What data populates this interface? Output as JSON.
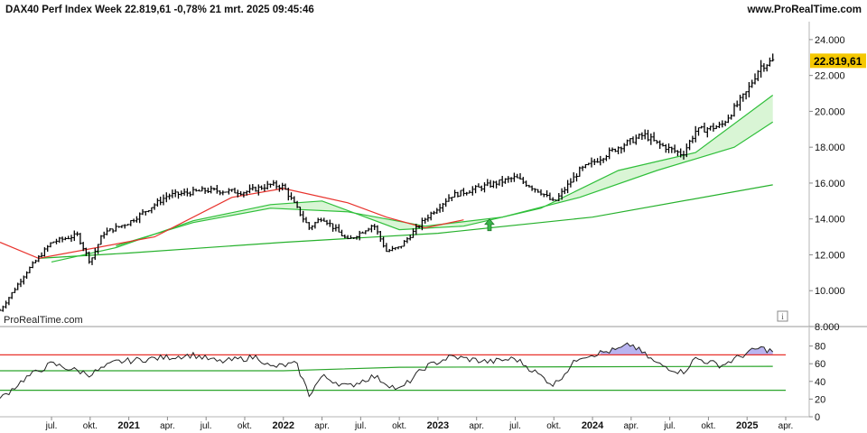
{
  "header": {
    "title": "DAX40 Perf Index Week 22.819,61 -0,78% 21 mrt. 2025 09:45:46",
    "brand": "www.ProRealTime.com"
  },
  "watermark": "ProRealTime.com",
  "info_icon": "info-icon",
  "colors": {
    "price_bars": "#000000",
    "ma_red": "#e8322c",
    "ma_green_fast": "#2fbf3a",
    "ma_green_slow": "#26b12c",
    "cloud_fill": "#d9f5d5",
    "last_price_badge": "#f5c800",
    "osc_line": "#222222",
    "osc_upper_level": "#e8322c",
    "osc_lower_level": "#2aa52a",
    "osc_overbought_fill": "#b9b4f0"
  },
  "chart_data": [
    {
      "type": "ohlc",
      "title": "DAX40 Perf Index Week",
      "ylim": [
        8000,
        25000
      ],
      "y_ticks": [
        "24.000",
        "22.000",
        "20.000",
        "18.000",
        "16.000",
        "14.000",
        "12.000",
        "10.000",
        "8.000"
      ],
      "y_tick_values": [
        24000,
        22000,
        20000,
        18000,
        16000,
        14000,
        12000,
        10000,
        8000
      ],
      "last_price_label": "22.819,61",
      "last_price": 22819.61,
      "x_ticks": [
        "jul.",
        "okt.",
        "2021",
        "apr.",
        "jul.",
        "okt.",
        "2022",
        "apr.",
        "jul.",
        "okt.",
        "2023",
        "apr.",
        "jul.",
        "okt.",
        "2024",
        "apr.",
        "jul.",
        "okt.",
        "2025",
        "apr."
      ],
      "x_tick_years": [
        "2021",
        "2022",
        "2023",
        "2024",
        "2025"
      ],
      "x_tick_dates": [
        "2020-07",
        "2020-10",
        "2021-01",
        "2021-04",
        "2021-07",
        "2021-10",
        "2022-01",
        "2022-04",
        "2022-07",
        "2022-10",
        "2023-01",
        "2023-04",
        "2023-07",
        "2023-10",
        "2024-01",
        "2024-04",
        "2024-07",
        "2024-10",
        "2025-01",
        "2025-04"
      ],
      "xlim": [
        "2020-03",
        "2025-04"
      ],
      "close_anchors": [
        {
          "date": "2020-03",
          "close": 8900
        },
        {
          "date": "2020-05",
          "close": 11000
        },
        {
          "date": "2020-07",
          "close": 12700
        },
        {
          "date": "2020-09",
          "close": 13100
        },
        {
          "date": "2020-10",
          "close": 11600
        },
        {
          "date": "2020-11",
          "close": 13200
        },
        {
          "date": "2021-01",
          "close": 13800
        },
        {
          "date": "2021-04",
          "close": 15300
        },
        {
          "date": "2021-07",
          "close": 15600
        },
        {
          "date": "2021-10",
          "close": 15500
        },
        {
          "date": "2021-12",
          "close": 15900
        },
        {
          "date": "2022-01",
          "close": 15800
        },
        {
          "date": "2022-03",
          "close": 13500
        },
        {
          "date": "2022-04",
          "close": 14100
        },
        {
          "date": "2022-06",
          "close": 12800
        },
        {
          "date": "2022-08",
          "close": 13700
        },
        {
          "date": "2022-09",
          "close": 12200
        },
        {
          "date": "2022-10",
          "close": 12400
        },
        {
          "date": "2022-12",
          "close": 14000
        },
        {
          "date": "2023-02",
          "close": 15300
        },
        {
          "date": "2023-05",
          "close": 15900
        },
        {
          "date": "2023-07",
          "close": 16300
        },
        {
          "date": "2023-09",
          "close": 15500
        },
        {
          "date": "2023-10",
          "close": 14900
        },
        {
          "date": "2023-12",
          "close": 16700
        },
        {
          "date": "2024-03",
          "close": 18000
        },
        {
          "date": "2024-05",
          "close": 18700
        },
        {
          "date": "2024-06",
          "close": 18200
        },
        {
          "date": "2024-08",
          "close": 17600
        },
        {
          "date": "2024-09",
          "close": 18900
        },
        {
          "date": "2024-11",
          "close": 19200
        },
        {
          "date": "2025-01",
          "close": 21100
        },
        {
          "date": "2025-02",
          "close": 22500
        },
        {
          "date": "2025-03",
          "close": 22820
        }
      ],
      "ma_red": [
        {
          "date": "2020-03",
          "value": 12700
        },
        {
          "date": "2020-06",
          "value": 11800
        },
        {
          "date": "2021-03",
          "value": 13000
        },
        {
          "date": "2021-09",
          "value": 15200
        },
        {
          "date": "2022-01",
          "value": 15700
        },
        {
          "date": "2022-06",
          "value": 14900
        },
        {
          "date": "2022-09",
          "value": 14100
        },
        {
          "date": "2022-12",
          "value": 13500
        },
        {
          "date": "2023-03",
          "value": 13950
        }
      ],
      "ma_green_fast": [
        {
          "date": "2020-07",
          "value": 11600
        },
        {
          "date": "2020-12",
          "value": 12400
        },
        {
          "date": "2021-06",
          "value": 13900
        },
        {
          "date": "2021-12",
          "value": 14800
        },
        {
          "date": "2022-04",
          "value": 15000
        },
        {
          "date": "2022-10",
          "value": 13400
        },
        {
          "date": "2023-03",
          "value": 13600
        },
        {
          "date": "2023-09",
          "value": 14600
        },
        {
          "date": "2024-03",
          "value": 16700
        },
        {
          "date": "2024-09",
          "value": 17700
        },
        {
          "date": "2025-03",
          "value": 20900
        }
      ],
      "ma_green_mid": [
        {
          "date": "2020-12",
          "value": 12500
        },
        {
          "date": "2021-06",
          "value": 13800
        },
        {
          "date": "2021-12",
          "value": 14600
        },
        {
          "date": "2022-06",
          "value": 14400
        },
        {
          "date": "2022-12",
          "value": 13600
        },
        {
          "date": "2023-06",
          "value": 14100
        },
        {
          "date": "2023-12",
          "value": 15200
        },
        {
          "date": "2024-06",
          "value": 16700
        },
        {
          "date": "2024-12",
          "value": 18000
        },
        {
          "date": "2025-03",
          "value": 19400
        }
      ],
      "ma_green_slow": [
        {
          "date": "2020-06",
          "value": 11800
        },
        {
          "date": "2021-01",
          "value": 12100
        },
        {
          "date": "2022-01",
          "value": 12700
        },
        {
          "date": "2023-01",
          "value": 13200
        },
        {
          "date": "2024-01",
          "value": 14100
        },
        {
          "date": "2025-03",
          "value": 15900
        }
      ],
      "signal_arrow": {
        "date": "2023-05",
        "value": 13700,
        "direction": "up"
      }
    },
    {
      "type": "line",
      "ylim": [
        0,
        100
      ],
      "y_ticks": [
        "80",
        "60",
        "40",
        "20",
        "0"
      ],
      "y_tick_values": [
        80,
        60,
        40,
        20,
        0
      ],
      "upper_level": 70,
      "lower_level": 30,
      "signal_line": [
        {
          "date": "2020-03",
          "value": 52
        },
        {
          "date": "2022-01",
          "value": 52
        },
        {
          "date": "2022-10",
          "value": 56
        },
        {
          "date": "2025-03",
          "value": 57
        }
      ],
      "values": [
        {
          "date": "2020-03",
          "value": 20
        },
        {
          "date": "2020-05",
          "value": 44
        },
        {
          "date": "2020-07",
          "value": 60
        },
        {
          "date": "2020-10",
          "value": 48
        },
        {
          "date": "2020-12",
          "value": 62
        },
        {
          "date": "2021-03",
          "value": 66
        },
        {
          "date": "2021-06",
          "value": 70
        },
        {
          "date": "2021-08",
          "value": 62
        },
        {
          "date": "2021-11",
          "value": 68
        },
        {
          "date": "2021-12",
          "value": 56
        },
        {
          "date": "2022-02",
          "value": 60
        },
        {
          "date": "2022-03",
          "value": 25
        },
        {
          "date": "2022-04",
          "value": 46
        },
        {
          "date": "2022-06",
          "value": 34
        },
        {
          "date": "2022-08",
          "value": 46
        },
        {
          "date": "2022-10",
          "value": 30
        },
        {
          "date": "2022-12",
          "value": 56
        },
        {
          "date": "2023-02",
          "value": 68
        },
        {
          "date": "2023-05",
          "value": 62
        },
        {
          "date": "2023-07",
          "value": 66
        },
        {
          "date": "2023-10",
          "value": 36
        },
        {
          "date": "2023-12",
          "value": 68
        },
        {
          "date": "2024-03",
          "value": 76
        },
        {
          "date": "2024-04",
          "value": 82
        },
        {
          "date": "2024-06",
          "value": 60
        },
        {
          "date": "2024-08",
          "value": 50
        },
        {
          "date": "2024-09",
          "value": 66
        },
        {
          "date": "2024-11",
          "value": 58
        },
        {
          "date": "2025-01",
          "value": 72
        },
        {
          "date": "2025-02",
          "value": 78
        },
        {
          "date": "2025-03",
          "value": 74
        }
      ]
    }
  ]
}
